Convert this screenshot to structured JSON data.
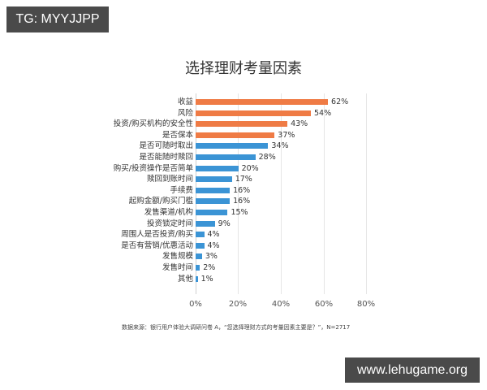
{
  "watermark": {
    "tg": "TG: MYYJJPP",
    "site": "www.lehugame.org"
  },
  "colors": {
    "orange": "#ef7b45",
    "blue": "#3b94d5",
    "grid": "#e6e6e6"
  },
  "chart_data": {
    "type": "bar",
    "orientation": "horizontal",
    "title": "选择理财考量因素",
    "xlabel": "",
    "ylabel": "",
    "xlim": [
      0,
      80
    ],
    "xticks": [
      "0%",
      "20%",
      "40%",
      "60%",
      "80%"
    ],
    "grid": true,
    "legend": null,
    "categories": [
      "收益",
      "风险",
      "投资/购买机构的安全性",
      "是否保本",
      "是否可随时取出",
      "是否能随时赎回",
      "购买/投资操作是否简单",
      "赎回到账时间",
      "手续费",
      "起购金额/购买门槛",
      "发售渠道/机构",
      "投资锁定时间",
      "周围人是否投资/购买",
      "是否有营销/优惠活动",
      "发售规模",
      "发售时间",
      "其他"
    ],
    "values": [
      62,
      54,
      43,
      37,
      34,
      28,
      20,
      17,
      16,
      16,
      15,
      9,
      4,
      4,
      3,
      2,
      1
    ],
    "value_labels": [
      "62%",
      "54%",
      "43%",
      "37%",
      "34%",
      "28%",
      "20%",
      "17%",
      "16%",
      "16%",
      "15%",
      "9%",
      "4%",
      "4%",
      "3%",
      "2%",
      "1%"
    ],
    "bar_colors": [
      "#ef7b45",
      "#ef7b45",
      "#ef7b45",
      "#ef7b45",
      "#3b94d5",
      "#3b94d5",
      "#3b94d5",
      "#3b94d5",
      "#3b94d5",
      "#3b94d5",
      "#3b94d5",
      "#3b94d5",
      "#3b94d5",
      "#3b94d5",
      "#3b94d5",
      "#3b94d5",
      "#3b94d5"
    ],
    "source_note": "数据来源：银行用户体验大调研问卷 A，“您选择理财方式的考量因素主要是？”，N=2717"
  }
}
